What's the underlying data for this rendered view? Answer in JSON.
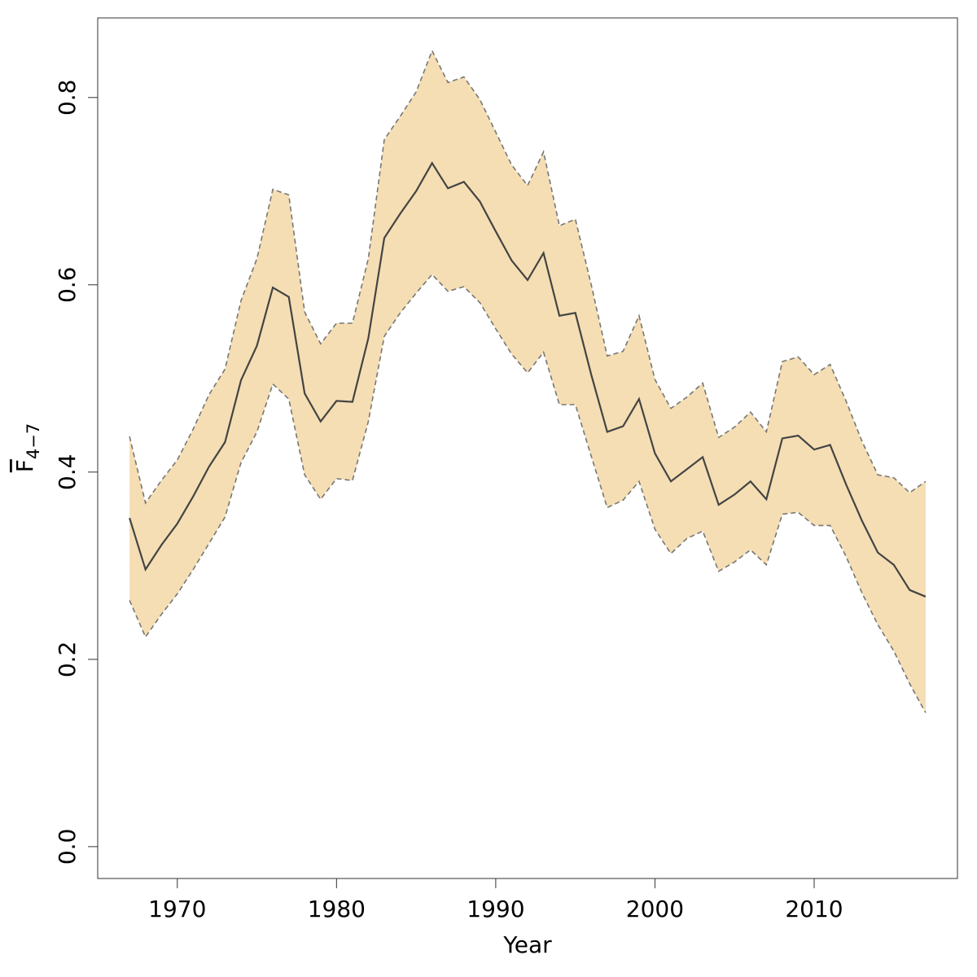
{
  "chart_data": {
    "type": "line-band",
    "x_label": "Year",
    "y_label": "F",
    "y_label_subscript": "4−7",
    "x": [
      1967,
      1968,
      1969,
      1970,
      1971,
      1972,
      1973,
      1974,
      1975,
      1976,
      1977,
      1978,
      1979,
      1980,
      1981,
      1982,
      1983,
      1984,
      1985,
      1986,
      1987,
      1988,
      1989,
      1990,
      1991,
      1992,
      1993,
      1994,
      1995,
      1996,
      1997,
      1998,
      1999,
      2000,
      2001,
      2002,
      2003,
      2004,
      2005,
      2006,
      2007,
      2008,
      2009,
      2010,
      2011,
      2012,
      2013,
      2014,
      2015,
      2016,
      2017
    ],
    "values": [
      0.351,
      0.296,
      0.322,
      0.345,
      0.374,
      0.406,
      0.432,
      0.498,
      0.535,
      0.597,
      0.587,
      0.484,
      0.454,
      0.476,
      0.475,
      0.543,
      0.65,
      0.676,
      0.7,
      0.73,
      0.703,
      0.71,
      0.689,
      0.657,
      0.626,
      0.605,
      0.634,
      0.567,
      0.57,
      0.504,
      0.443,
      0.449,
      0.478,
      0.42,
      0.39,
      0.403,
      0.416,
      0.365,
      0.376,
      0.39,
      0.371,
      0.436,
      0.439,
      0.424,
      0.429,
      0.387,
      0.348,
      0.314,
      0.301,
      0.274,
      0.267
    ],
    "upper": [
      0.438,
      0.367,
      0.391,
      0.413,
      0.446,
      0.483,
      0.51,
      0.583,
      0.628,
      0.702,
      0.696,
      0.571,
      0.537,
      0.559,
      0.559,
      0.628,
      0.755,
      0.78,
      0.806,
      0.85,
      0.816,
      0.822,
      0.798,
      0.763,
      0.728,
      0.706,
      0.742,
      0.663,
      0.67,
      0.6,
      0.524,
      0.529,
      0.567,
      0.499,
      0.468,
      0.48,
      0.495,
      0.437,
      0.448,
      0.464,
      0.443,
      0.518,
      0.523,
      0.504,
      0.515,
      0.476,
      0.433,
      0.397,
      0.394,
      0.378,
      0.39
    ],
    "lower": [
      0.263,
      0.224,
      0.248,
      0.27,
      0.296,
      0.324,
      0.352,
      0.41,
      0.443,
      0.494,
      0.478,
      0.397,
      0.371,
      0.393,
      0.391,
      0.454,
      0.545,
      0.57,
      0.591,
      0.611,
      0.593,
      0.598,
      0.581,
      0.553,
      0.526,
      0.506,
      0.528,
      0.472,
      0.472,
      0.417,
      0.362,
      0.37,
      0.39,
      0.339,
      0.313,
      0.329,
      0.337,
      0.294,
      0.304,
      0.317,
      0.301,
      0.355,
      0.357,
      0.343,
      0.343,
      0.31,
      0.271,
      0.237,
      0.209,
      0.174,
      0.143
    ],
    "line_color": "#444444",
    "band_color": "#f5deb3",
    "band_edge_color": "#777777",
    "xlim": [
      1965,
      2019
    ],
    "ylim": [
      -0.034,
      0.885
    ],
    "xticks": [
      1970,
      1980,
      1990,
      2000,
      2010
    ],
    "yticks": [
      {
        "value": 0,
        "label": "0.0"
      },
      0.2,
      0.4,
      0.6,
      0.8
    ]
  }
}
